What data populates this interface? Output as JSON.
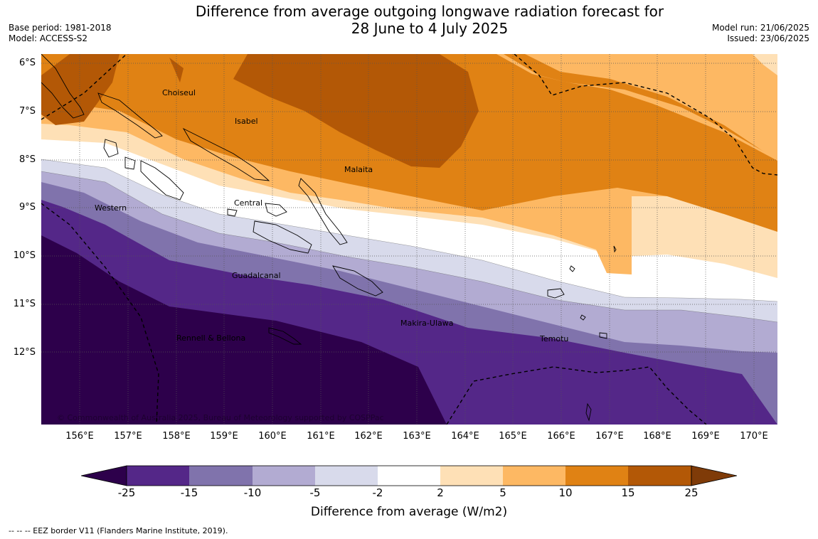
{
  "header": {
    "title_line1": "Difference from average outgoing longwave radiation forecast for",
    "title_line2": "28 June to 4 July 2025",
    "base_period": "Base period: 1981-2018",
    "model": "Model: ACCESS-S2",
    "model_run": "Model run: 21/06/2025",
    "issued": "Issued: 23/06/2025"
  },
  "map": {
    "lat_labels": [
      "6°S",
      "7°S",
      "8°S",
      "9°S",
      "10°S",
      "11°S",
      "12°S"
    ],
    "lon_labels": [
      "156°E",
      "157°E",
      "158°E",
      "159°E",
      "160°E",
      "161°E",
      "162°E",
      "163°E",
      "164°E",
      "165°E",
      "166°E",
      "167°E",
      "168°E",
      "169°E",
      "170°E"
    ],
    "region_labels": [
      "Choiseul",
      "Isabel",
      "Malaita",
      "Central",
      "Western",
      "Guadalcanal",
      "Makira-Ulawa",
      "Rennell & Bellona",
      "Temotu"
    ],
    "copyright": "© Commonwealth of Australia 2025, Bureau of Meteorology supported by COSPPac",
    "colors": {
      "lt_neg25": "#2d004b",
      "neg25_neg15": "#542788",
      "neg15_neg10": "#8073ac",
      "neg10_neg5": "#b2abd2",
      "neg5_neg2": "#d8daeb",
      "neg2_2": "#ffffff",
      "p2_5": "#fee0b6",
      "p5_10": "#fdb863",
      "p10_15": "#e08214",
      "p15_25": "#b35806",
      "gt_25": "#7f3b08"
    }
  },
  "colorbar": {
    "ticks": [
      "-25",
      "-15",
      "-10",
      "-5",
      "-2",
      "2",
      "5",
      "10",
      "15",
      "25"
    ],
    "label": "Difference from average (W/m2)"
  },
  "footer": {
    "eez_note": "--  --  -- EEZ border V11 (Flanders Marine Institute, 2019)."
  }
}
